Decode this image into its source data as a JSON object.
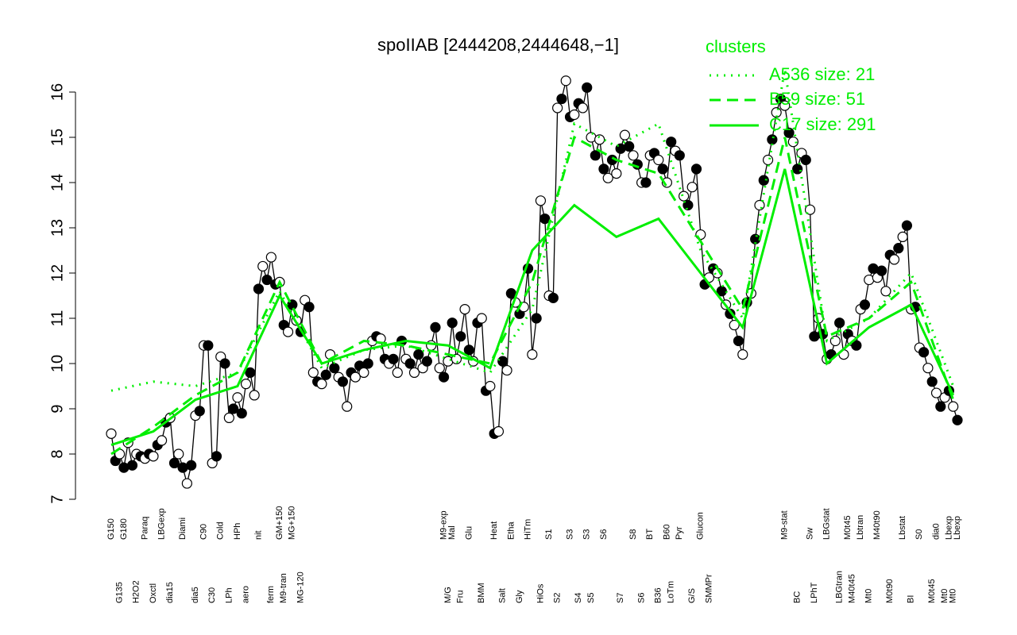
{
  "chart_data": {
    "type": "line",
    "title": "spoIIAB [2444208,2444648,−1]",
    "legend_title": "clusters",
    "categories": [
      "G150",
      null,
      "G135",
      "G180",
      null,
      null,
      "H2O2",
      null,
      "Paraq",
      null,
      "Oxctl",
      null,
      "LBGexp",
      null,
      "dia15",
      null,
      null,
      "Diami",
      null,
      null,
      "dia5",
      null,
      "C90",
      null,
      "C30",
      null,
      "Cold",
      null,
      "LPh",
      null,
      "HPh",
      null,
      "aero",
      null,
      null,
      "nit",
      null,
      null,
      "ferm",
      null,
      "GM+150",
      "M9-tran",
      null,
      "MG+150",
      null,
      "MG-120",
      null,
      null,
      null,
      null,
      null,
      null,
      null,
      null,
      null,
      null,
      null,
      null,
      null,
      null,
      null,
      null,
      null,
      null,
      null,
      null,
      null,
      null,
      null,
      null,
      null,
      null,
      null,
      null,
      null,
      null,
      null,
      null,
      null,
      "M9-exp",
      "M/G",
      "Mal",
      null,
      "Fru",
      null,
      "Glu",
      null,
      null,
      "BMM",
      null,
      null,
      "Heat",
      null,
      "Salt",
      null,
      "Etha",
      null,
      "Gly",
      null,
      "HiTm",
      null,
      null,
      "HiOs",
      null,
      "S1",
      null,
      "S2",
      null,
      null,
      "S3",
      null,
      "S4",
      null,
      "S3",
      "S5",
      null,
      null,
      "S6",
      null,
      null,
      null,
      "S7",
      null,
      null,
      "S8",
      null,
      "S6",
      null,
      "BT",
      null,
      "B36",
      null,
      "B60",
      "LoTm",
      null,
      "Pyr",
      null,
      null,
      "G/S",
      null,
      "Glucon",
      null,
      "SMMPr",
      null,
      null,
      null,
      null,
      null,
      null,
      null,
      null,
      null,
      null,
      null,
      null,
      null,
      null,
      null,
      null,
      null,
      "M9-stat",
      null,
      null,
      "BC",
      null,
      null,
      "Sw",
      "LPhT",
      null,
      null,
      "LBGstat",
      null,
      null,
      "LBGtran",
      null,
      "M0t45",
      "M40t45",
      null,
      "Lbtran",
      null,
      "Mt0",
      null,
      "M40t90",
      null,
      null,
      "M0t90",
      null,
      null,
      "Lbstat",
      null,
      "BI",
      null,
      "S0",
      null,
      null,
      "M0t45",
      "dia0",
      null,
      "Mt0",
      "Lbexp",
      "Mt0",
      "Lbexp"
    ],
    "series": [
      {
        "name": null,
        "color": "#000000",
        "values": [
          8.45,
          7.85,
          8.0,
          7.7,
          8.25,
          7.75,
          8.0,
          7.95,
          7.9,
          8.0,
          7.95,
          8.2,
          8.3,
          8.7,
          8.8,
          7.8,
          8.0,
          7.7,
          7.35,
          7.75,
          8.85,
          8.95,
          10.4,
          10.4,
          7.8,
          7.95,
          10.15,
          10.0,
          8.8,
          9.0,
          9.25,
          8.9,
          9.55,
          9.8,
          9.3,
          11.65,
          12.15,
          11.85,
          12.35,
          11.75,
          11.8,
          10.85,
          10.7,
          11.3,
          10.95,
          10.7,
          11.4,
          11.25,
          9.8,
          9.6,
          9.55,
          9.75,
          10.2,
          9.9,
          9.7,
          9.6,
          9.05,
          9.8,
          9.7,
          9.95,
          9.8,
          10.0,
          10.5,
          10.6,
          10.55,
          10.1,
          10.0,
          10.1,
          9.8,
          10.5,
          10.1,
          10.0,
          9.8,
          10.2,
          9.9,
          10.05,
          10.4,
          10.8,
          9.9,
          9.7,
          10.05,
          10.9,
          10.1,
          10.6,
          11.2,
          10.3,
          10.05,
          10.9,
          11.0,
          9.4,
          9.5,
          8.45,
          8.5,
          10.05,
          9.85,
          11.55,
          11.35,
          11.1,
          11.25,
          12.1,
          10.2,
          11.0,
          13.6,
          13.2,
          11.5,
          11.45,
          15.65,
          15.85,
          16.25,
          15.45,
          15.5,
          15.75,
          15.65,
          16.1,
          15.0,
          14.6,
          14.95,
          14.3,
          14.1,
          14.5,
          14.2,
          14.75,
          15.05,
          14.8,
          14.6,
          14.4,
          14.0,
          14.0,
          14.6,
          14.65,
          14.5,
          14.3,
          14.0,
          14.9,
          14.7,
          14.6,
          13.7,
          13.5,
          13.9,
          14.3,
          12.85,
          11.75,
          11.9,
          12.1,
          12.0,
          11.6,
          11.3,
          11.1,
          10.85,
          10.5,
          10.2,
          11.35,
          11.55,
          12.75,
          13.5,
          14.05,
          14.5,
          14.95,
          15.55,
          15.85,
          15.7,
          15.1,
          14.9,
          14.3,
          14.65,
          14.5,
          13.4,
          10.6,
          11.0,
          10.65,
          10.1,
          10.2,
          10.5,
          10.9,
          10.2,
          10.65,
          10.5,
          10.4,
          11.2,
          11.3,
          11.85,
          12.1,
          11.9,
          12.05,
          11.6,
          12.4,
          12.3,
          12.55,
          12.8,
          13.05,
          11.2,
          11.25,
          10.35,
          10.25,
          9.9,
          9.6,
          9.35,
          9.05,
          9.25,
          9.4,
          9.05,
          8.75
        ]
      },
      {
        "name": "A536 size: 21",
        "color": "#00ee00",
        "dash": "dotted",
        "x": [
          0,
          10,
          20,
          30,
          40,
          50,
          60,
          70,
          80,
          90,
          100,
          110,
          120,
          130,
          140,
          150,
          160,
          170,
          180,
          190,
          200
        ],
        "values": [
          9.4,
          9.6,
          9.5,
          9.8,
          11.6,
          9.9,
          10.3,
          10.4,
          10.1,
          9.8,
          11.2,
          15.3,
          14.8,
          15.3,
          12.5,
          11.0,
          16.5,
          10.5,
          11.0,
          12.0,
          9.5
        ]
      },
      {
        "name": "B59 size: 51",
        "color": "#00ee00",
        "dash": "dashed",
        "x": [
          0,
          10,
          20,
          30,
          40,
          50,
          60,
          70,
          80,
          90,
          100,
          110,
          120,
          130,
          140,
          150,
          160,
          170,
          180,
          190,
          200
        ],
        "values": [
          8.0,
          8.6,
          9.3,
          9.8,
          11.8,
          10.0,
          10.5,
          10.4,
          10.2,
          10.0,
          11.8,
          15.0,
          14.5,
          14.2,
          12.7,
          11.2,
          15.0,
          10.6,
          11.0,
          11.8,
          9.2
        ]
      },
      {
        "name": "C17 size: 291",
        "color": "#00ee00",
        "dash": "solid",
        "x": [
          0,
          10,
          20,
          30,
          40,
          50,
          60,
          70,
          80,
          90,
          100,
          110,
          120,
          130,
          140,
          150,
          160,
          170,
          180,
          190,
          200
        ],
        "values": [
          8.2,
          8.5,
          9.2,
          9.5,
          11.5,
          10.0,
          10.3,
          10.5,
          10.4,
          9.9,
          12.5,
          13.5,
          12.8,
          13.2,
          12.0,
          10.8,
          14.3,
          10.0,
          10.8,
          11.3,
          9.3
        ]
      }
    ],
    "ylim": [
      7,
      16
    ],
    "yticks": [
      7,
      8,
      9,
      10,
      11,
      12,
      13,
      14,
      15,
      16
    ]
  }
}
